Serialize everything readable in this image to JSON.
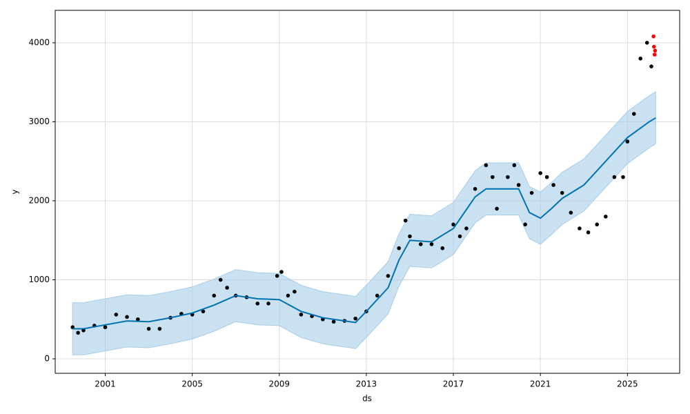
{
  "chart_data": {
    "type": "forecast",
    "x_label": "ds",
    "y_label": "y",
    "xlim": [
      1998.7,
      2027.4
    ],
    "ylim": [
      -183,
      4410
    ],
    "xticks": [
      2001,
      2005,
      2009,
      2013,
      2017,
      2021,
      2025
    ],
    "yticks": [
      0,
      1000,
      2000,
      3000,
      4000
    ],
    "grid": true,
    "series": [
      {
        "style": "points",
        "color": "#000000",
        "x": [
          1999.5,
          1999.75,
          2000.0,
          2000.5,
          2001.0,
          2001.5,
          2002.0,
          2002.5,
          2003.0,
          2003.5,
          2004.0,
          2004.5,
          2005.0,
          2005.5,
          2006.0,
          2006.3,
          2006.6,
          2007.0,
          2007.5,
          2008.0,
          2008.5,
          2008.9,
          2009.1,
          2009.4,
          2009.7,
          2010.0,
          2010.5,
          2011.0,
          2011.5,
          2012.0,
          2012.5,
          2013.0,
          2013.5,
          2014.0,
          2014.5,
          2014.8,
          2015.0,
          2015.5,
          2016.0,
          2016.5,
          2017.0,
          2017.3,
          2017.6,
          2018.0,
          2018.5,
          2018.8,
          2019.0,
          2019.5,
          2019.8,
          2020.0,
          2020.3,
          2020.6,
          2021.0,
          2021.3,
          2021.6,
          2022.0,
          2022.4,
          2022.8,
          2023.2,
          2023.6,
          2024.0,
          2024.4,
          2024.8,
          2025.0,
          2025.3,
          2025.6,
          2025.9,
          2026.1
        ],
        "values": [
          400,
          330,
          360,
          420,
          400,
          560,
          530,
          500,
          380,
          380,
          520,
          570,
          560,
          600,
          800,
          1000,
          900,
          800,
          780,
          700,
          700,
          1050,
          1100,
          800,
          850,
          560,
          540,
          500,
          470,
          480,
          510,
          600,
          800,
          1050,
          1400,
          1750,
          1550,
          1450,
          1450,
          1400,
          1700,
          1550,
          1650,
          2150,
          2450,
          2300,
          1900,
          2300,
          2450,
          2200,
          1700,
          2100,
          2350,
          2300,
          2200,
          2100,
          1850,
          1650,
          1600,
          1700,
          1800,
          2300,
          2300,
          2750,
          3100,
          3800,
          4000,
          3700
        ]
      },
      {
        "style": "line",
        "color": "#0072b2",
        "x": [
          1999.5,
          2000,
          2001,
          2002,
          2003,
          2004,
          2005,
          2006,
          2007,
          2008,
          2009,
          2010,
          2011,
          2012,
          2012.5,
          2013,
          2014,
          2014.5,
          2015,
          2016,
          2017,
          2018,
          2018.5,
          2019,
          2020,
          2020.5,
          2021,
          2021.5,
          2022,
          2023,
          2024,
          2025,
          2026,
          2026.3
        ],
        "values": [
          380,
          380,
          430,
          480,
          470,
          520,
          580,
          680,
          800,
          760,
          750,
          600,
          520,
          480,
          460,
          600,
          900,
          1250,
          1500,
          1480,
          1650,
          2050,
          2150,
          2150,
          2150,
          1850,
          1780,
          1900,
          2030,
          2200,
          2500,
          2800,
          3000,
          3050
        ]
      },
      {
        "style": "band",
        "color": "#a6cde8",
        "x": [
          1999.5,
          2000,
          2001,
          2002,
          2003,
          2004,
          2005,
          2006,
          2007,
          2008,
          2009,
          2010,
          2011,
          2012,
          2012.5,
          2013,
          2014,
          2014.5,
          2015,
          2016,
          2017,
          2018,
          2018.5,
          2019,
          2020,
          2020.5,
          2021,
          2021.5,
          2022,
          2023,
          2024,
          2025,
          2026,
          2026.3
        ],
        "lower": [
          50,
          50,
          100,
          150,
          140,
          190,
          250,
          350,
          470,
          430,
          420,
          270,
          190,
          150,
          130,
          270,
          570,
          920,
          1170,
          1150,
          1320,
          1720,
          1820,
          1820,
          1820,
          1520,
          1450,
          1570,
          1700,
          1870,
          2170,
          2470,
          2670,
          2720
        ],
        "upper": [
          710,
          710,
          760,
          810,
          800,
          850,
          910,
          1010,
          1130,
          1090,
          1080,
          930,
          850,
          810,
          790,
          930,
          1230,
          1580,
          1830,
          1810,
          1980,
          2380,
          2480,
          2480,
          2480,
          2180,
          2110,
          2230,
          2360,
          2530,
          2830,
          3130,
          3330,
          3380
        ]
      },
      {
        "style": "points",
        "color": "#ff0000",
        "x": [
          2026.2,
          2026.22,
          2026.25,
          2026.27
        ],
        "values": [
          4080,
          3950,
          3850,
          3900
        ]
      }
    ]
  }
}
